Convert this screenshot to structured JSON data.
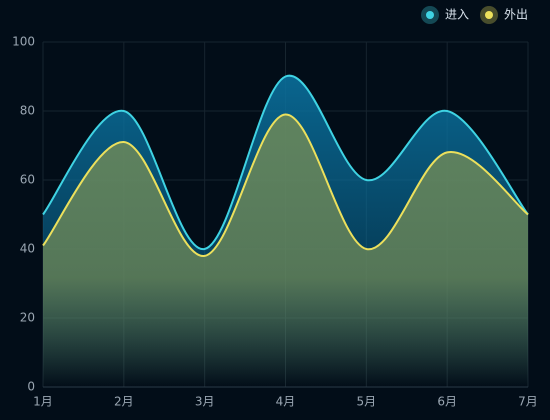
{
  "chart_data": {
    "type": "line",
    "categories": [
      "1月",
      "2月",
      "3月",
      "4月",
      "5月",
      "6月",
      "7月"
    ],
    "series": [
      {
        "name": "进入",
        "color": "#3fd3e3",
        "area_color": "#0a6f9c",
        "values": [
          50,
          80,
          40,
          90,
          60,
          80,
          50
        ]
      },
      {
        "name": "外出",
        "color": "#ece05c",
        "area_color": "#6f8a58",
        "values": [
          41,
          71,
          38,
          79,
          40,
          68,
          50
        ]
      }
    ],
    "ylim": [
      0,
      100
    ],
    "yticks": [
      0,
      20,
      40,
      60,
      80,
      100
    ],
    "grid": true,
    "smooth": true,
    "legend": "top-right"
  }
}
